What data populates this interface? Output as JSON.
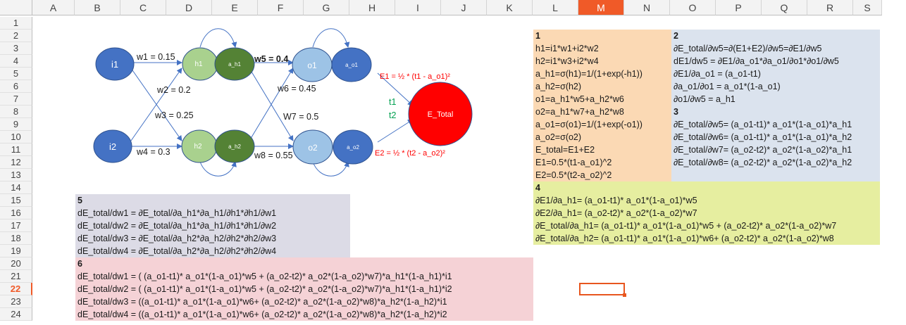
{
  "columns": [
    "A",
    "B",
    "C",
    "D",
    "E",
    "F",
    "G",
    "H",
    "I",
    "J",
    "K",
    "L",
    "M",
    "N",
    "O",
    "P",
    "Q",
    "R",
    "S"
  ],
  "active_column": "M",
  "rows": [
    "1",
    "2",
    "3",
    "4",
    "5",
    "6",
    "7",
    "8",
    "9",
    "10",
    "11",
    "12",
    "13",
    "14",
    "15",
    "16",
    "17",
    "18",
    "19",
    "20",
    "21",
    "22",
    "23",
    "24"
  ],
  "active_row": "22",
  "diagram": {
    "nodes": {
      "i1": "i1",
      "i2": "i2",
      "h1": "h1",
      "a_h1": "a_h1",
      "h2": "h2",
      "a_h2": "a_h2",
      "o1": "o1",
      "a_o1": "a_o1",
      "o2": "o2",
      "a_o2": "a_o2",
      "e_total": "E_Total"
    },
    "weights": {
      "w1": "w1 = 0.15",
      "w2": "w2 = 0.2",
      "w3": "w3 = 0.25",
      "w4": "w4 = 0.3",
      "w5": "w5 = 0.4",
      "w6": "w6 = 0.45",
      "w7": "W7 = 0.5",
      "w8": "w8 = 0.55"
    },
    "e1": "E1 = ½ * (t1 - a_o1)²",
    "e2": "E2 = ½ * (t2 - a_o2)²",
    "t1": "t1",
    "t2": "t2"
  },
  "box1": {
    "title": "1",
    "lines": [
      "h1=i1*w1+i2*w2",
      "h2=i1*w3+i2*w4",
      "a_h1=σ(h1)=1/(1+exp(-h1))",
      "a_h2=σ(h2)",
      "o1=a_h1*w5+a_h2*w6",
      "o2=a_h1*w7+a_h2*w8",
      "a_o1=σ(o1)=1/(1+exp(-o1))",
      "a_o2=σ(o2)",
      "E_total=E1+E2",
      "E1=0.5*(t1-a_o1)^2",
      "E2=0.5*(t2-a_o2)^2"
    ]
  },
  "box2": {
    "title": "2",
    "lines": [
      "∂E_total/∂w5=∂(E1+E2)/∂w5=∂E1/∂w5",
      "dE1/dw5 = ∂E1/∂a_o1*∂a_o1/∂o1*∂o1/∂w5",
      "∂E1/∂a_o1 = (a_o1-t1)",
      "∂a_o1/∂o1 = a_o1*(1-a_o1)",
      "∂o1/∂w5 = a_h1",
      "3",
      "∂E_total/∂w5= (a_o1-t1)* a_o1*(1-a_o1)*a_h1",
      "∂E_total/∂w6= (a_o1-t1)* a_o1*(1-a_o1)*a_h2",
      "∂E_total/∂w7= (a_o2-t2)* a_o2*(1-a_o2)*a_h1",
      "∂E_total/∂w8= (a_o2-t2)* a_o2*(1-a_o2)*a_h2"
    ]
  },
  "box4": {
    "title": "4",
    "lines": [
      "∂E1/∂a_h1= (a_o1-t1)* a_o1*(1-a_o1)*w5",
      "∂E2/∂a_h1= (a_o2-t2)* a_o2*(1-a_o2)*w7",
      "∂E_total/∂a_h1= (a_o1-t1)* a_o1*(1-a_o1)*w5 + (a_o2-t2)* a_o2*(1-a_o2)*w7",
      "∂E_total/∂a_h2= (a_o1-t1)* a_o1*(1-a_o1)*w6+ (a_o2-t2)* a_o2*(1-a_o2)*w8"
    ]
  },
  "box5": {
    "title": "5",
    "lines": [
      "dE_total/dw1 = ∂E_total/∂a_h1*∂a_h1/∂h1*∂h1/∂w1",
      "dE_total/dw2 = ∂E_total/∂a_h1*∂a_h1/∂h1*∂h1/∂w2",
      "dE_total/dw3 = ∂E_total/∂a_h2*∂a_h2/∂h2*∂h2/∂w3",
      "dE_total/dw4 = ∂E_total/∂a_h2*∂a_h2/∂h2*∂h2/∂w4"
    ]
  },
  "box6": {
    "title": "6",
    "lines": [
      "dE_total/dw1 = ( (a_o1-t1)* a_o1*(1-a_o1)*w5 + (a_o2-t2)* a_o2*(1-a_o2)*w7)*a_h1*(1-a_h1)*i1",
      "dE_total/dw2 = ( (a_o1-t1)* a_o1*(1-a_o1)*w5 + (a_o2-t2)* a_o2*(1-a_o2)*w7)*a_h1*(1-a_h1)*i2",
      "dE_total/dw3 = ((a_o1-t1)* a_o1*(1-a_o1)*w6+ (a_o2-t2)* a_o2*(1-a_o2)*w8)*a_h2*(1-a_h2)*i1",
      "dE_total/dw4 = ((a_o1-t1)* a_o1*(1-a_o1)*w6+ (a_o2-t2)* a_o2*(1-a_o2)*w8)*a_h2*(1-a_h2)*i2"
    ]
  },
  "colors": {
    "box1": "#fbd9b4",
    "box2": "#dbe3ee",
    "box4": "#e6eea0",
    "box5": "#dcdbe6",
    "box6": "#f5d2d6",
    "node_dark": "#4472c4",
    "node_h": "#a9d18e",
    "node_ah": "#548235",
    "node_o": "#9dc3e6",
    "error": "#ff0000",
    "accent": "#f05a28"
  }
}
